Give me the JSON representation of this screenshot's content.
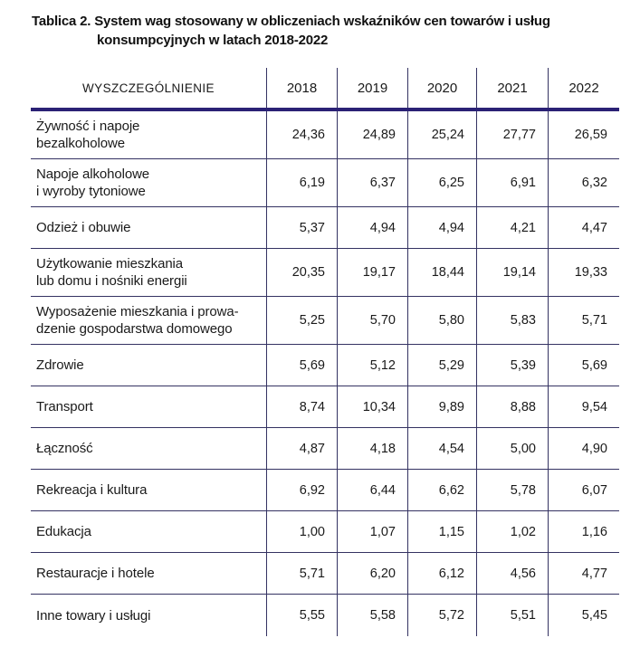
{
  "title": {
    "line1": "Tablica 2. System wag stosowany w obliczeniach wskaźników cen towarów i usług",
    "line2": "konsumpcyjnych w latach 2018-2022"
  },
  "table": {
    "header": {
      "col0": "WYSZCZEGÓLNIENIE",
      "years": [
        "2018",
        "2019",
        "2020",
        "2021",
        "2022"
      ]
    },
    "rows": [
      {
        "name": "Żywność i napoje\nbezalkoholowe",
        "values": [
          "24,36",
          "24,89",
          "25,24",
          "27,77",
          "26,59"
        ]
      },
      {
        "name": "Napoje alkoholowe\ni wyroby tytoniowe",
        "values": [
          "6,19",
          "6,37",
          "6,25",
          "6,91",
          "6,32"
        ]
      },
      {
        "name": "Odzież i obuwie",
        "values": [
          "5,37",
          "4,94",
          "4,94",
          "4,21",
          "4,47"
        ]
      },
      {
        "name": "Użytkowanie mieszkania\nlub domu i nośniki energii",
        "values": [
          "20,35",
          "19,17",
          "18,44",
          "19,14",
          "19,33"
        ]
      },
      {
        "name": "Wyposażenie mieszkania i prowa-\ndzenie gospodarstwa domowego",
        "values": [
          "5,25",
          "5,70",
          "5,80",
          "5,83",
          "5,71"
        ]
      },
      {
        "name": "Zdrowie",
        "values": [
          "5,69",
          "5,12",
          "5,29",
          "5,39",
          "5,69"
        ]
      },
      {
        "name": "Transport",
        "values": [
          "8,74",
          "10,34",
          "9,89",
          "8,88",
          "9,54"
        ]
      },
      {
        "name": "Łączność",
        "values": [
          "4,87",
          "4,18",
          "4,54",
          "5,00",
          "4,90"
        ]
      },
      {
        "name": "Rekreacja i kultura",
        "values": [
          "6,92",
          "6,44",
          "6,62",
          "5,78",
          "6,07"
        ]
      },
      {
        "name": "Edukacja",
        "values": [
          "1,00",
          "1,07",
          "1,15",
          "1,02",
          "1,16"
        ]
      },
      {
        "name": "Restauracje i hotele",
        "values": [
          "5,71",
          "6,20",
          "6,12",
          "4,56",
          "4,77"
        ]
      },
      {
        "name": "Inne towary i usługi",
        "values": [
          "5,55",
          "5,58",
          "5,72",
          "5,51",
          "5,45"
        ]
      }
    ]
  },
  "colors": {
    "rule_thin": "#343262",
    "rule_thick": "#2b2175",
    "text": "#1a1a1a"
  }
}
